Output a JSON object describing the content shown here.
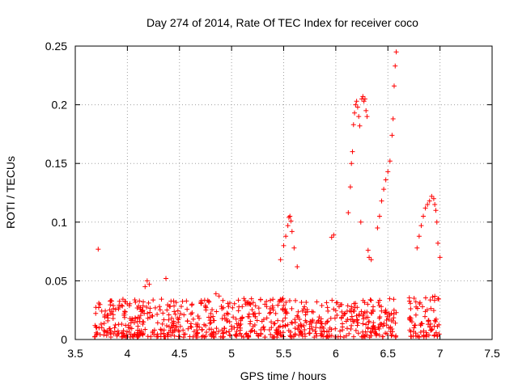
{
  "chart_data": {
    "type": "scatter",
    "title": "Day 274 of 2014, Rate Of TEC Index for receiver coco",
    "xlabel": "GPS time / hours",
    "ylabel": "ROTI / TECUs",
    "xlim": [
      3.5,
      7.5
    ],
    "ylim": [
      0,
      0.25
    ],
    "x_ticks": [
      "3.5",
      "4",
      "4.5",
      "5",
      "5.5",
      "6",
      "6.5",
      "7",
      "7.5"
    ],
    "y_ticks": [
      "0",
      "0.05",
      "0.1",
      "0.15",
      "0.2",
      "0.25"
    ],
    "grid": true,
    "marker": "+",
    "color": "#ff0000",
    "series": [
      {
        "name": "ROTI",
        "x": [
          3.72,
          4.17,
          4.19,
          4.21,
          4.37,
          4.85,
          4.88,
          5.47,
          5.5,
          5.52,
          5.54,
          5.55,
          5.56,
          5.57,
          5.58,
          5.6,
          5.63,
          5.96,
          5.98,
          6.12,
          6.14,
          6.15,
          6.16,
          6.17,
          6.18,
          6.19,
          6.2,
          6.21,
          6.22,
          6.23,
          6.24,
          6.25,
          6.26,
          6.27,
          6.28,
          6.29,
          6.3,
          6.31,
          6.32,
          6.34,
          6.4,
          6.42,
          6.44,
          6.46,
          6.48,
          6.5,
          6.52,
          6.54,
          6.55,
          6.56,
          6.57,
          6.58,
          6.78,
          6.8,
          6.82,
          6.84,
          6.86,
          6.88,
          6.9,
          6.92,
          6.94,
          6.95,
          6.96,
          6.97,
          6.98,
          7.0
        ],
        "y": [
          0.077,
          0.045,
          0.05,
          0.047,
          0.052,
          0.039,
          0.037,
          0.068,
          0.08,
          0.088,
          0.097,
          0.104,
          0.105,
          0.101,
          0.092,
          0.078,
          0.062,
          0.087,
          0.089,
          0.108,
          0.13,
          0.15,
          0.16,
          0.183,
          0.193,
          0.2,
          0.203,
          0.198,
          0.19,
          0.182,
          0.1,
          0.205,
          0.207,
          0.203,
          0.205,
          0.195,
          0.19,
          0.076,
          0.07,
          0.068,
          0.095,
          0.105,
          0.118,
          0.128,
          0.136,
          0.143,
          0.152,
          0.174,
          0.188,
          0.216,
          0.233,
          0.245,
          0.078,
          0.088,
          0.097,
          0.105,
          0.112,
          0.115,
          0.118,
          0.122,
          0.12,
          0.115,
          0.11,
          0.1,
          0.082,
          0.07
        ]
      }
    ],
    "dense_band": {
      "note": "thousands of low-level points between 0 and ~0.04 TECUs",
      "segments": [
        {
          "x_start": 3.68,
          "x_end": 6.58,
          "y_min": 0.002,
          "y_max": 0.035
        },
        {
          "x_start": 6.7,
          "x_end": 7.0,
          "y_min": 0.002,
          "y_max": 0.038
        }
      ]
    }
  }
}
